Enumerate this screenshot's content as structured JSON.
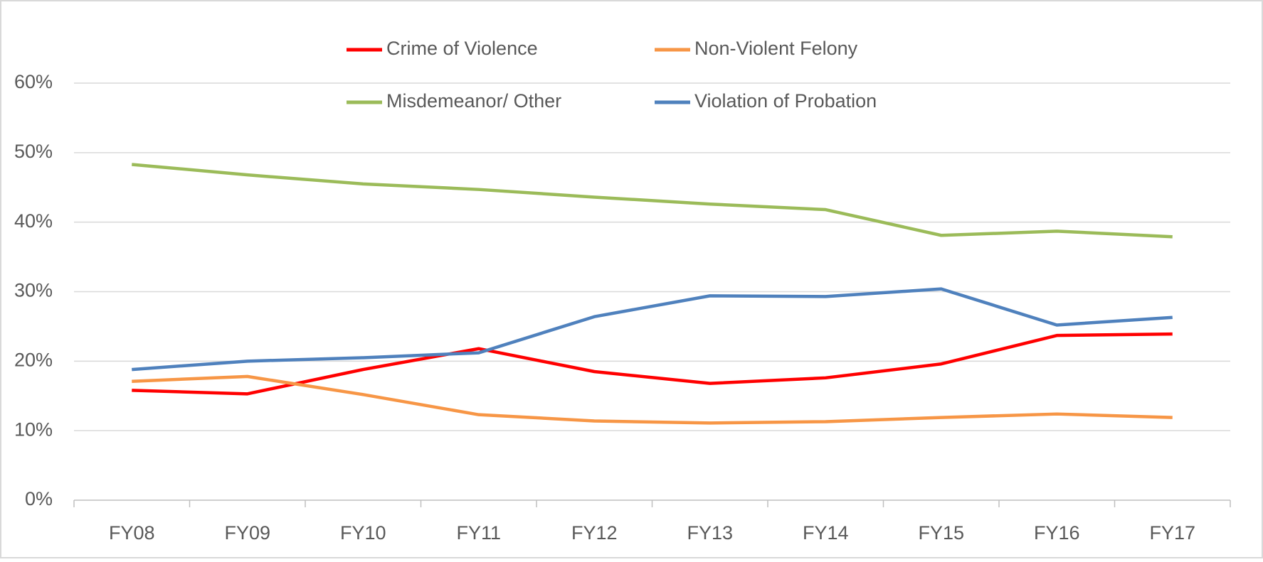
{
  "chart_data": {
    "type": "line",
    "categories": [
      "FY08",
      "FY09",
      "FY10",
      "FY11",
      "FY12",
      "FY13",
      "FY14",
      "FY15",
      "FY16",
      "FY17"
    ],
    "series": [
      {
        "name": "Crime of Violence",
        "color": "#ff0000",
        "values": [
          15.8,
          15.3,
          18.8,
          21.8,
          18.5,
          16.8,
          17.6,
          19.6,
          23.7,
          23.9
        ]
      },
      {
        "name": "Non-Violent Felony",
        "color": "#f79646",
        "values": [
          17.1,
          17.8,
          15.2,
          12.3,
          11.4,
          11.1,
          11.3,
          11.9,
          12.4,
          11.9
        ]
      },
      {
        "name": "Misdemeanor/ Other",
        "color": "#9bbb59",
        "values": [
          48.3,
          46.8,
          45.5,
          44.7,
          43.6,
          42.6,
          41.8,
          38.1,
          38.7,
          37.9
        ]
      },
      {
        "name": "Violation of Probation",
        "color": "#4f81bd",
        "values": [
          18.8,
          20.0,
          20.5,
          21.2,
          26.4,
          29.4,
          29.3,
          30.4,
          25.2,
          26.3
        ]
      }
    ],
    "ylim": [
      0,
      60
    ],
    "yticks": [
      {
        "value": 0,
        "label": "0%"
      },
      {
        "value": 10,
        "label": "10%"
      },
      {
        "value": 20,
        "label": "20%"
      },
      {
        "value": 30,
        "label": "30%"
      },
      {
        "value": 40,
        "label": "40%"
      },
      {
        "value": 50,
        "label": "50%"
      },
      {
        "value": 60,
        "label": "60%"
      }
    ],
    "grid": true,
    "legend": "top"
  }
}
